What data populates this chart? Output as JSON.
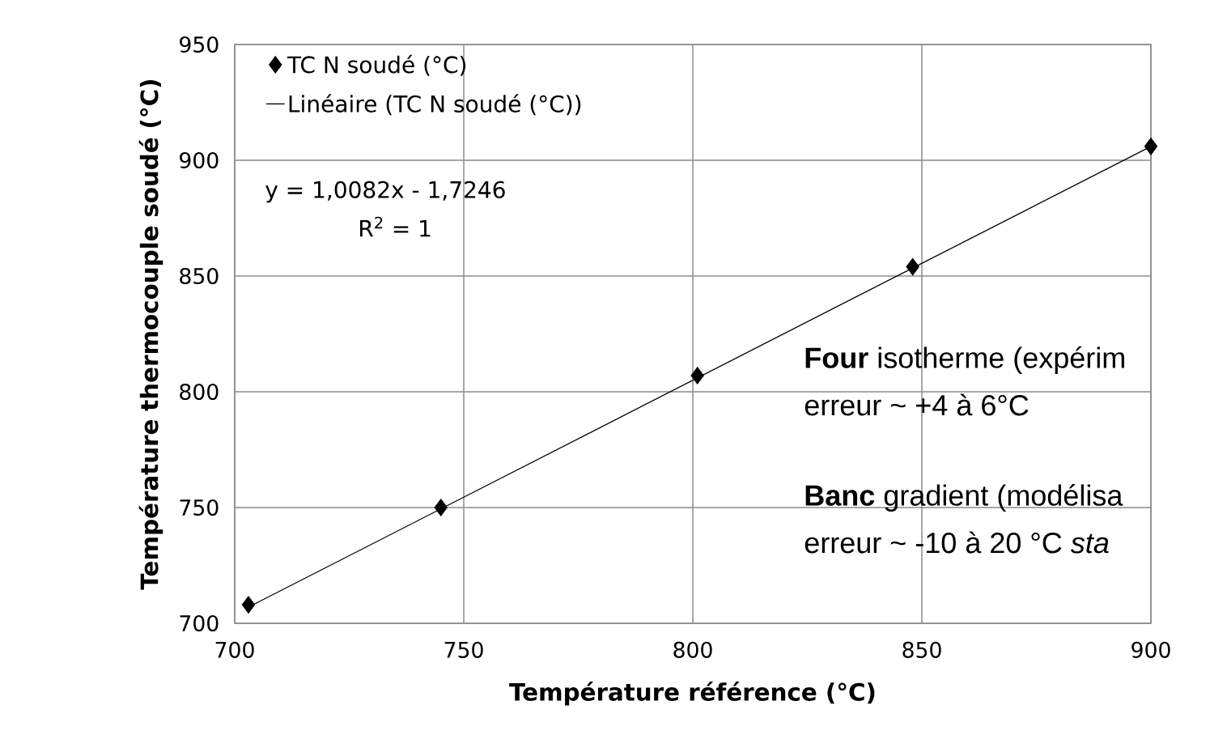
{
  "chart_data": {
    "type": "scatter",
    "xlabel": "Température référence (°C)",
    "ylabel": "Température thermocouple soudé (°C)",
    "xlim": [
      700,
      900
    ],
    "ylim": [
      700,
      950
    ],
    "xticks": [
      700,
      750,
      800,
      850,
      900
    ],
    "yticks": [
      700,
      750,
      800,
      850,
      900,
      950
    ],
    "grid": true,
    "legend": "top left",
    "series": [
      {
        "name": "TC N soudé (°C)",
        "marker": "diamond",
        "color": "#000000",
        "x": [
          703,
          745,
          801,
          848,
          900
        ],
        "values": [
          708,
          750,
          807,
          854,
          906
        ]
      },
      {
        "name": "Linéaire (TC N soudé (°C))",
        "type": "line",
        "marker": "none",
        "line_style": "solid",
        "color": "#000000",
        "x": [
          703,
          900
        ],
        "values": [
          707,
          906
        ]
      }
    ],
    "annotations": [
      "y = 1,0082x - 1,7246",
      "R$^{2}$ = 1",
      "**Four** isotherme (expérim",
      "erreur ~ +4 à 6°C",
      "**Banc** gradient (modélisa",
      "erreur ~ -10 à 20 °C *sta*"
    ]
  }
}
